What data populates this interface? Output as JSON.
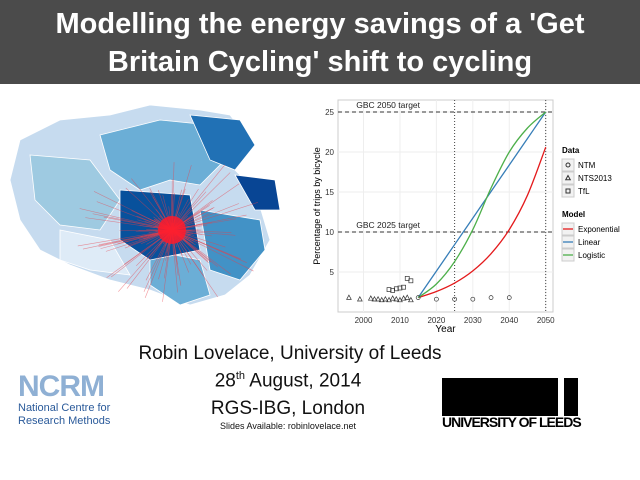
{
  "slide": {
    "title_line1": "Modelling the energy savings of a 'Get",
    "title_line2": "Britain Cycling' shift to cycling",
    "author": "Robin Lovelace, University of Leeds",
    "date_day": "28",
    "date_suffix": "th",
    "date_rest": " August, 2014",
    "venue": "RGS-IBG, London",
    "slides_note": "Slides Available: robinlovelace.net",
    "ncrm_logo": "NCRM",
    "ncrm_line1": "National Centre for",
    "ncrm_line2": "Research Methods",
    "leeds_logo": "UNIVERSITY OF LEEDS",
    "colors": {
      "title_bg": "#4b4b4b",
      "exponential": "#e41a1c",
      "linear": "#377eb8",
      "logistic": "#4daf4a"
    }
  },
  "chart_data": {
    "type": "line",
    "xlabel": "Year",
    "ylabel": "Percentage of trips by bicycle",
    "xlim": [
      1993,
      2052
    ],
    "ylim": [
      0,
      26.5
    ],
    "xticks": [
      2000,
      2010,
      2020,
      2030,
      2040,
      2050
    ],
    "yticks": [
      5,
      10,
      15,
      20,
      25
    ],
    "grid": true,
    "annotations": [
      {
        "text": "GBC 2050 target",
        "y": 25
      },
      {
        "text": "GBC 2025 target",
        "y": 10
      }
    ],
    "vlines": [
      2025,
      2050
    ],
    "legend_data_title": "Data",
    "legend_model_title": "Model",
    "legend_placement": "right",
    "data_series": [
      {
        "name": "NTM",
        "shape": "circle",
        "x": [
          2015,
          2020,
          2025,
          2030,
          2035,
          2040
        ],
        "y": [
          1.8,
          1.6,
          1.6,
          1.6,
          1.8,
          1.8
        ]
      },
      {
        "name": "NTS2013",
        "shape": "triangle",
        "x": [
          1996,
          1999,
          2002,
          2003,
          2004,
          2005,
          2006,
          2007,
          2008,
          2009,
          2010,
          2011,
          2012,
          2013
        ],
        "y": [
          1.8,
          1.6,
          1.7,
          1.6,
          1.6,
          1.5,
          1.6,
          1.5,
          1.7,
          1.6,
          1.5,
          1.7,
          1.8,
          1.5
        ]
      },
      {
        "name": "TfL",
        "label": "TfL",
        "shape": "square",
        "x": [
          2007,
          2008,
          2009,
          2010,
          2011,
          2012,
          2013
        ],
        "y": [
          2.8,
          2.7,
          2.9,
          3.0,
          3.1,
          4.2,
          3.9
        ]
      }
    ],
    "model_series": [
      {
        "name": "Exponential",
        "x": [
          2015,
          2020,
          2025,
          2030,
          2035,
          2040,
          2045,
          2050
        ],
        "y": [
          1.8,
          2.56,
          3.62,
          5.14,
          7.29,
          10.3,
          14.6,
          20.6
        ]
      },
      {
        "name": "Linear",
        "x": [
          2015,
          2020,
          2025,
          2030,
          2035,
          2040,
          2045,
          2050
        ],
        "y": [
          1.8,
          5.11,
          8.43,
          11.74,
          15.06,
          18.37,
          21.69,
          25
        ]
      },
      {
        "name": "Logistic",
        "x": [
          2015,
          2020,
          2025,
          2030,
          2035,
          2040,
          2045,
          2050
        ],
        "y": [
          1.8,
          3.5,
          6.3,
          10.3,
          15.5,
          20.0,
          23.0,
          25
        ]
      }
    ]
  }
}
